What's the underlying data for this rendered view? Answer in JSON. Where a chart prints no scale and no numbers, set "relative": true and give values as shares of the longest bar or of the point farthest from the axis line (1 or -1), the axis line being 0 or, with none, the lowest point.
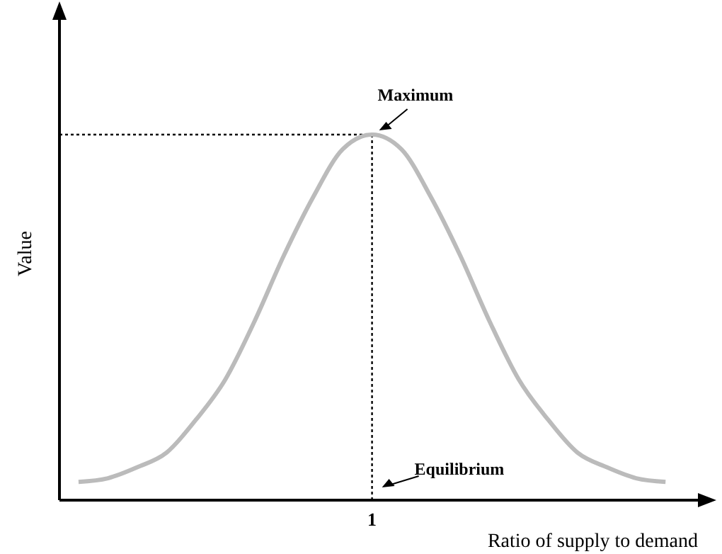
{
  "chart_data": {
    "type": "line",
    "relative": true,
    "xlabel": "Ratio of supply to demand",
    "ylabel": "Value",
    "categories": [
      null,
      null,
      null,
      null,
      null,
      null,
      null,
      null,
      null,
      null,
      null,
      null,
      null,
      null,
      null,
      null,
      null,
      null,
      null,
      null,
      null
    ],
    "series": [
      {
        "color": "#bbbbbb",
        "values": [
          0.05,
          0.06,
          0.09,
          0.13,
          0.22,
          0.33,
          0.49,
          0.67,
          0.83,
          0.96,
          1,
          0.96,
          0.83,
          0.67,
          0.49,
          0.33,
          0.22,
          0.13,
          0.09,
          0.06,
          0.05
        ]
      }
    ],
    "ref_lines": [
      {
        "axis": "x",
        "label": "1",
        "line_style": "dotted",
        "color": "#000000"
      },
      {
        "axis": "y",
        "value": 1,
        "line_style": "dotted",
        "color": "#000000"
      }
    ],
    "annotations": [
      "Maximum",
      "Equilibrium"
    ],
    "marker": "none",
    "grid": false,
    "legend": false
  }
}
